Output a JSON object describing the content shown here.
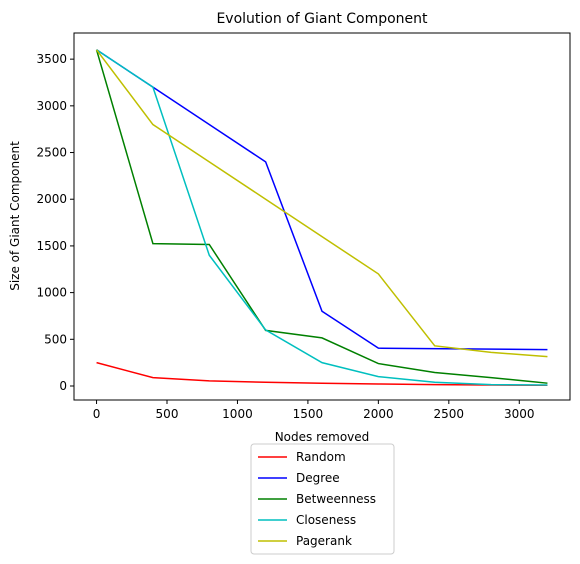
{
  "chart_data": {
    "type": "line",
    "title": "Evolution of Giant Component",
    "xlabel": "Nodes removed",
    "ylabel": "Size of Giant Component",
    "xlim": [
      -160,
      3360
    ],
    "ylim": [
      -150,
      3780
    ],
    "xticks": [
      0,
      500,
      1000,
      1500,
      2000,
      2500,
      3000
    ],
    "yticks": [
      0,
      500,
      1000,
      1500,
      2000,
      2500,
      3000,
      3500
    ],
    "grid": false,
    "legend_position": "bottom-center-outside",
    "series": [
      {
        "name": "Random",
        "color": "#ff0000",
        "x": [
          0,
          400,
          800,
          1200,
          1600,
          2000,
          2400,
          2800,
          3200
        ],
        "y": [
          250,
          90,
          55,
          40,
          30,
          22,
          15,
          10,
          8
        ]
      },
      {
        "name": "Degree",
        "color": "#0000ff",
        "x": [
          0,
          400,
          1200,
          1600,
          2000,
          3200
        ],
        "y": [
          3600,
          3200,
          2400,
          800,
          405,
          390
        ]
      },
      {
        "name": "Betweenness",
        "color": "#008000",
        "x": [
          0,
          400,
          800,
          1200,
          1600,
          2000,
          2400,
          2800,
          3200
        ],
        "y": [
          3600,
          1525,
          1515,
          595,
          515,
          240,
          145,
          90,
          30
        ]
      },
      {
        "name": "Closeness",
        "color": "#00bfbf",
        "x": [
          0,
          400,
          800,
          1200,
          1600,
          2000,
          2400,
          2800,
          3200
        ],
        "y": [
          3600,
          3200,
          1400,
          600,
          250,
          100,
          40,
          15,
          10
        ]
      },
      {
        "name": "Pagerank",
        "color": "#bfbf00",
        "x": [
          0,
          400,
          800,
          1200,
          1600,
          2000,
          2400,
          2800,
          3200
        ],
        "y": [
          3600,
          2800,
          2400,
          2000,
          1600,
          1200,
          430,
          360,
          315
        ]
      }
    ]
  }
}
